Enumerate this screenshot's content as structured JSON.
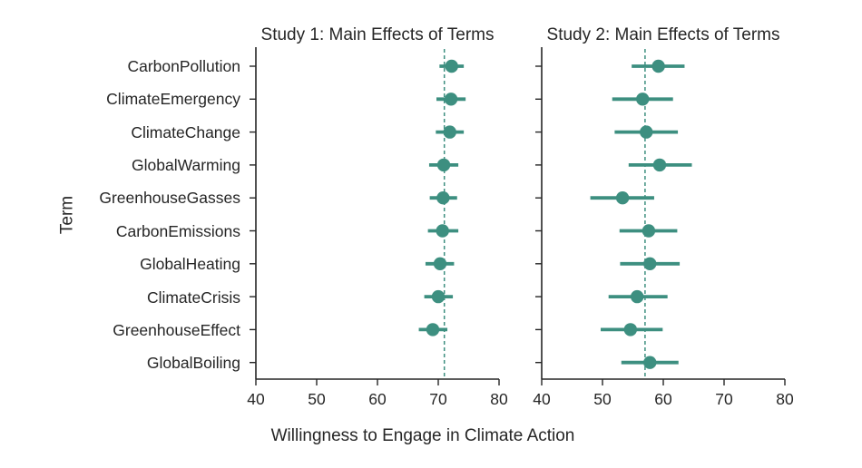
{
  "chart_data": {
    "type": "scatter",
    "xlabel": "Willingness to Engage in Climate Action",
    "ylabel": "Term",
    "xlim": [
      40,
      80
    ],
    "xticks": [
      "40",
      "50",
      "60",
      "70",
      "80"
    ],
    "grid": false,
    "terms": [
      "CarbonPollution",
      "ClimateEmergency",
      "ClimateChange",
      "GlobalWarming",
      "GreenhouseGasses",
      "CarbonEmissions",
      "GlobalHeating",
      "ClimateCrisis",
      "GreenhouseEffect",
      "GlobalBoiling"
    ],
    "panels": [
      {
        "title": "Study 1: Main Effects of Terms",
        "reference_line": 71.0,
        "points": [
          {
            "term": "CarbonPollution",
            "mean": 72.2,
            "low": 70.2,
            "high": 74.2
          },
          {
            "term": "ClimateEmergency",
            "mean": 72.1,
            "low": 69.7,
            "high": 74.5
          },
          {
            "term": "ClimateChange",
            "mean": 71.9,
            "low": 69.6,
            "high": 74.2
          },
          {
            "term": "GlobalWarming",
            "mean": 70.9,
            "low": 68.5,
            "high": 73.3
          },
          {
            "term": "GreenhouseGasses",
            "mean": 70.8,
            "low": 68.6,
            "high": 73.1
          },
          {
            "term": "CarbonEmissions",
            "mean": 70.7,
            "low": 68.3,
            "high": 73.3
          },
          {
            "term": "GlobalHeating",
            "mean": 70.3,
            "low": 67.9,
            "high": 72.6
          },
          {
            "term": "ClimateCrisis",
            "mean": 70.0,
            "low": 67.7,
            "high": 72.4
          },
          {
            "term": "GreenhouseEffect",
            "mean": 69.1,
            "low": 66.8,
            "high": 71.5
          },
          {
            "term": "GlobalBoiling",
            "mean": null,
            "low": null,
            "high": null
          }
        ]
      },
      {
        "title": "Study 2: Main Effects of Terms",
        "reference_line": 57.0,
        "points": [
          {
            "term": "CarbonPollution",
            "mean": 59.2,
            "low": 54.8,
            "high": 63.5
          },
          {
            "term": "ClimateEmergency",
            "mean": 56.6,
            "low": 51.6,
            "high": 61.6
          },
          {
            "term": "ClimateChange",
            "mean": 57.2,
            "low": 52.0,
            "high": 62.4
          },
          {
            "term": "GlobalWarming",
            "mean": 59.4,
            "low": 54.3,
            "high": 64.7
          },
          {
            "term": "GreenhouseGasses",
            "mean": 53.3,
            "low": 48.0,
            "high": 58.5
          },
          {
            "term": "CarbonEmissions",
            "mean": 57.6,
            "low": 52.8,
            "high": 62.3
          },
          {
            "term": "GlobalHeating",
            "mean": 57.8,
            "low": 52.9,
            "high": 62.7
          },
          {
            "term": "ClimateCrisis",
            "mean": 55.7,
            "low": 51.0,
            "high": 60.7
          },
          {
            "term": "GreenhouseEffect",
            "mean": 54.6,
            "low": 49.7,
            "high": 59.9
          },
          {
            "term": "GlobalBoiling",
            "mean": 57.8,
            "low": 53.1,
            "high": 62.5
          }
        ]
      }
    ]
  },
  "colors": {
    "marker": "#3d8f80",
    "reference_line": "#3d8f80",
    "axis": "#262626"
  }
}
